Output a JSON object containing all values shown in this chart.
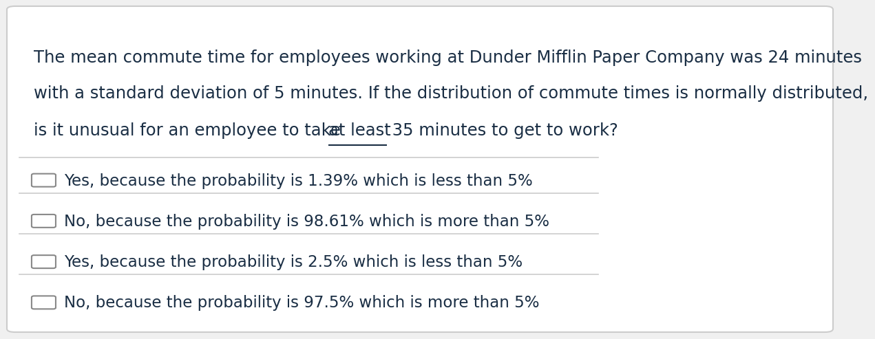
{
  "background_color": "#f0f0f0",
  "card_color": "#ffffff",
  "text_color": "#1a2e44",
  "separator_color": "#cccccc",
  "question_lines": [
    "The mean commute time for employees working at Dunder Mifflin Paper Company was 24 minutes",
    "with a standard deviation of 5 minutes. If the distribution of commute times is normally distributed,",
    "is it unusual for an employee to take at least 35 minutes to get to work?"
  ],
  "underline_phrase": "at least",
  "choices": [
    "Yes, because the probability is 1.39% which is less than 5%",
    "No, because the probability is 98.61% which is more than 5%",
    "Yes, because the probability is 2.5% which is less than 5%",
    "No, because the probability is 97.5% which is more than 5%"
  ],
  "font_size_question": 17.5,
  "font_size_choices": 16.5,
  "font_family": "DejaVu Sans"
}
